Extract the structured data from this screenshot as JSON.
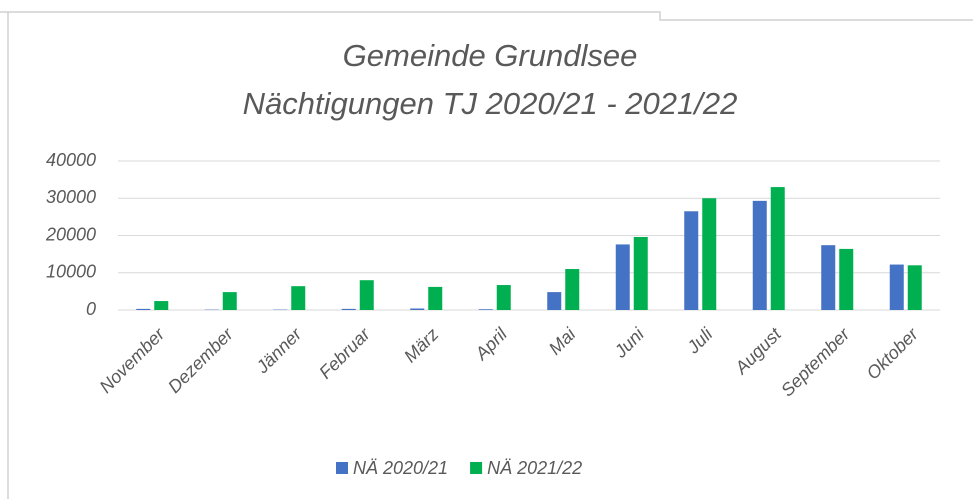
{
  "chart_data": {
    "type": "bar",
    "title": [
      "Gemeinde Grundlsee",
      "Nächtigungen TJ 2020/21 - 2021/22"
    ],
    "categories": [
      "November",
      "Dezember",
      "Jänner",
      "Februar",
      "März",
      "April",
      "Mai",
      "Juni",
      "Juli",
      "August",
      "September",
      "Oktober"
    ],
    "series": [
      {
        "name": "NÄ 2020/21",
        "color": "#4472c4",
        "values": [
          300,
          100,
          100,
          300,
          400,
          200,
          4800,
          17600,
          26500,
          29300,
          17400,
          12200
        ]
      },
      {
        "name": "NÄ 2021/22",
        "color": "#00b050",
        "values": [
          2400,
          4800,
          6400,
          8000,
          6200,
          6700,
          11000,
          19600,
          30000,
          33000,
          16400,
          12000
        ]
      }
    ],
    "ylim": [
      0,
      40000
    ],
    "yticks": [
      0,
      10000,
      20000,
      30000,
      40000
    ],
    "grid": true,
    "legend": "bottom"
  }
}
